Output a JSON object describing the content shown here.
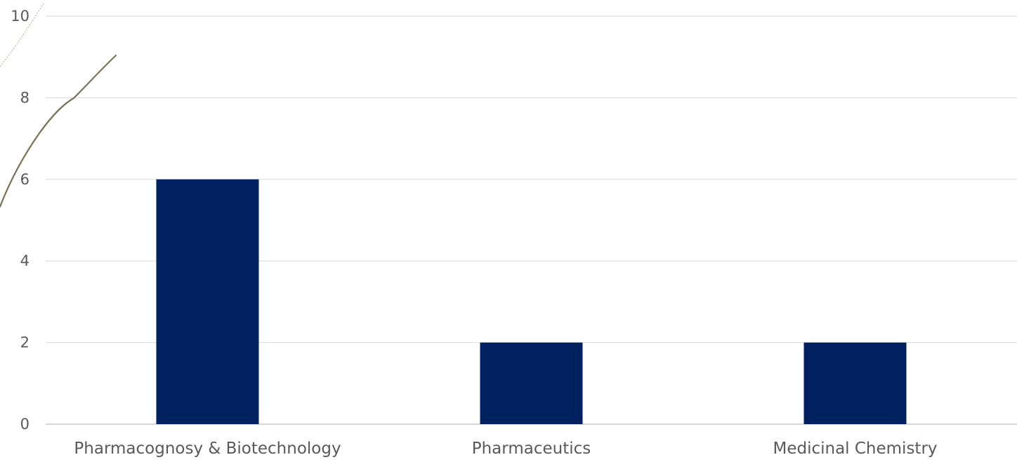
{
  "chart_data": {
    "type": "bar",
    "categories": [
      "Pharmacognosy & Biotechnology",
      "Pharmaceutics",
      "Medicinal Chemistry"
    ],
    "values": [
      6,
      2,
      2
    ],
    "ylim": [
      0,
      10
    ],
    "yticks": [
      0,
      2,
      4,
      6,
      8,
      10
    ],
    "title": "",
    "xlabel": "",
    "ylabel": "",
    "grid": true,
    "legend": "none",
    "bar_color": "#002060",
    "grid_color": "#d9d9d9",
    "text_color": "#595959",
    "decoration_color": "#7a7357"
  }
}
